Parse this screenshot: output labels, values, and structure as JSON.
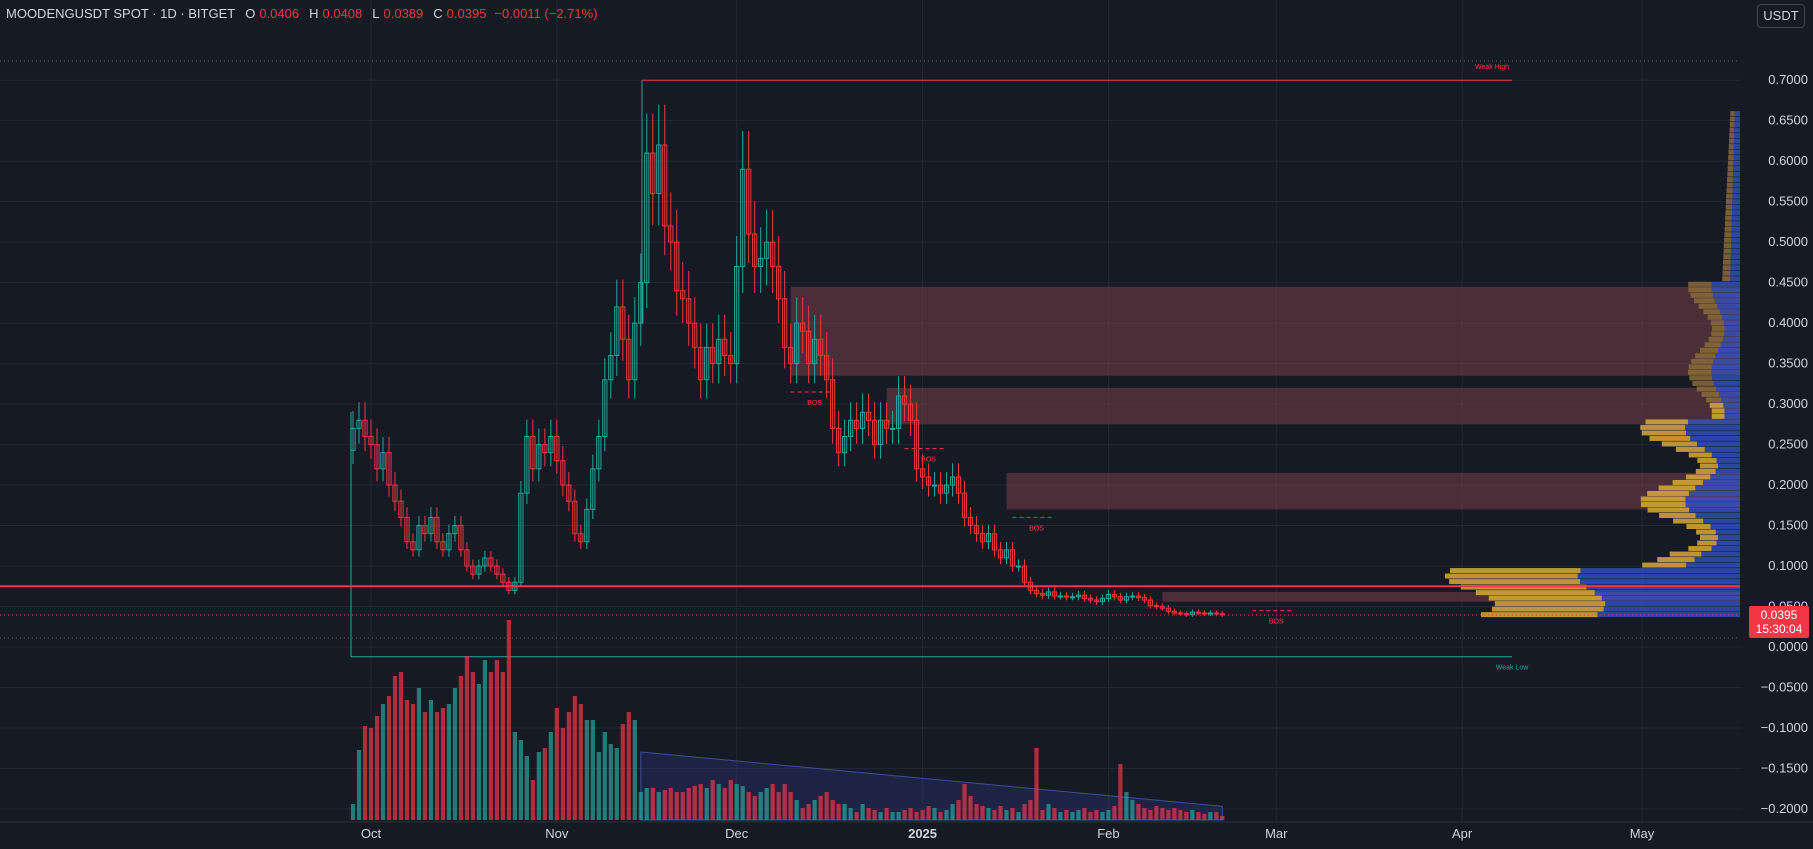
{
  "header": {
    "symbol": "MOODENGUSDT SPOT · 1D · BITGET",
    "open_label": "O",
    "open": "0.0406",
    "high_label": "H",
    "high": "0.0408",
    "low_label": "L",
    "low": "0.0389",
    "close_label": "C",
    "close": "0.0395",
    "change": "−0.0011 (−2.71%)"
  },
  "currency_button": "USDT",
  "last_price": {
    "value": "0.0395",
    "countdown": "15:30:04"
  },
  "colors": {
    "up": "#26a69a",
    "down": "#f23645",
    "bg": "#161a25",
    "grid": "#232733",
    "zone": "#7a3f48",
    "vp_yellow": "#d9a93a",
    "vp_blue": "#3355c8",
    "horizontal_line": "#f23645"
  },
  "annotations": {
    "weak_high": "Weak High",
    "weak_low": "Weak Low",
    "bos": "BOS"
  },
  "chart_data": {
    "type": "candlestick",
    "title": "",
    "x_axis_labels": [
      {
        "label": "Oct",
        "date": "2024-10-01"
      },
      {
        "label": "Nov",
        "date": "2024-11-01"
      },
      {
        "label": "Dec",
        "date": "2024-12-01"
      },
      {
        "label": "2025",
        "date": "2025-01-01",
        "bold": true
      },
      {
        "label": "Feb",
        "date": "2025-02-01"
      },
      {
        "label": "Mar",
        "date": "2025-03-01"
      },
      {
        "label": "Apr",
        "date": "2025-04-01"
      },
      {
        "label": "May",
        "date": "2025-05-01"
      }
    ],
    "y_axis_labels": [
      "0.7000",
      "0.6500",
      "0.6000",
      "0.5500",
      "0.5000",
      "0.4500",
      "0.4000",
      "0.3500",
      "0.3000",
      "0.2500",
      "0.2000",
      "0.1500",
      "0.1000",
      "0.0500",
      "0.0000",
      "−0.0500",
      "−0.1000",
      "−0.1500",
      "−0.2000"
    ],
    "ylim": [
      -0.205,
      0.72
    ],
    "start_date": "2024-09-28",
    "closes": [
      0.27,
      0.28,
      0.26,
      0.25,
      0.22,
      0.24,
      0.2,
      0.18,
      0.16,
      0.13,
      0.12,
      0.15,
      0.14,
      0.16,
      0.13,
      0.12,
      0.14,
      0.15,
      0.12,
      0.1,
      0.09,
      0.1,
      0.11,
      0.1,
      0.09,
      0.08,
      0.07,
      0.08,
      0.19,
      0.26,
      0.22,
      0.25,
      0.24,
      0.26,
      0.23,
      0.2,
      0.18,
      0.14,
      0.13,
      0.17,
      0.22,
      0.26,
      0.33,
      0.36,
      0.42,
      0.38,
      0.33,
      0.4,
      0.45,
      0.61,
      0.56,
      0.62,
      0.52,
      0.5,
      0.44,
      0.43,
      0.4,
      0.37,
      0.33,
      0.37,
      0.35,
      0.38,
      0.36,
      0.35,
      0.47,
      0.59,
      0.51,
      0.47,
      0.48,
      0.5,
      0.47,
      0.43,
      0.37,
      0.35,
      0.4,
      0.39,
      0.35,
      0.38,
      0.36,
      0.33,
      0.27,
      0.24,
      0.26,
      0.28,
      0.27,
      0.29,
      0.28,
      0.25,
      0.28,
      0.27,
      0.27,
      0.31,
      0.3,
      0.28,
      0.22,
      0.21,
      0.2,
      0.2,
      0.19,
      0.2,
      0.21,
      0.19,
      0.16,
      0.15,
      0.14,
      0.13,
      0.14,
      0.12,
      0.11,
      0.12,
      0.1,
      0.1,
      0.08,
      0.07,
      0.066,
      0.064,
      0.068,
      0.063,
      0.063,
      0.062,
      0.062,
      0.064,
      0.06,
      0.058,
      0.056,
      0.06,
      0.065,
      0.062,
      0.058,
      0.062,
      0.063,
      0.061,
      0.058,
      0.051,
      0.05,
      0.048,
      0.044,
      0.042,
      0.041,
      0.04,
      0.043,
      0.042,
      0.041,
      0.042,
      0.041,
      0.04
    ],
    "volume": [
      0.08,
      0.35,
      0.47,
      0.46,
      0.52,
      0.58,
      0.62,
      0.72,
      0.74,
      0.6,
      0.58,
      0.66,
      0.54,
      0.6,
      0.54,
      0.56,
      0.58,
      0.66,
      0.72,
      0.82,
      0.74,
      0.68,
      0.8,
      0.74,
      0.8,
      0.74,
      1.0,
      0.44,
      0.4,
      0.32,
      0.2,
      0.34,
      0.36,
      0.44,
      0.56,
      0.46,
      0.54,
      0.62,
      0.58,
      0.5,
      0.5,
      0.34,
      0.44,
      0.38,
      0.36,
      0.48,
      0.54,
      0.5,
      0.14,
      0.16,
      0.16,
      0.14,
      0.15,
      0.16,
      0.14,
      0.14,
      0.16,
      0.17,
      0.18,
      0.16,
      0.2,
      0.18,
      0.16,
      0.2,
      0.18,
      0.17,
      0.14,
      0.12,
      0.14,
      0.16,
      0.18,
      0.14,
      0.18,
      0.14,
      0.1,
      0.06,
      0.08,
      0.1,
      0.12,
      0.14,
      0.1,
      0.08,
      0.08,
      0.06,
      0.04,
      0.08,
      0.06,
      0.05,
      0.04,
      0.06,
      0.04,
      0.04,
      0.05,
      0.06,
      0.04,
      0.05,
      0.07,
      0.06,
      0.04,
      0.05,
      0.08,
      0.1,
      0.18,
      0.12,
      0.08,
      0.07,
      0.06,
      0.05,
      0.07,
      0.05,
      0.06,
      0.04,
      0.08,
      0.1,
      0.36,
      0.05,
      0.08,
      0.06,
      0.04,
      0.05,
      0.04,
      0.05,
      0.06,
      0.04,
      0.05,
      0.04,
      0.05,
      0.07,
      0.28,
      0.14,
      0.1,
      0.08,
      0.06,
      0.05,
      0.07,
      0.06,
      0.05,
      0.06,
      0.05,
      0.04,
      0.05,
      0.04,
      0.03,
      0.04,
      0.04,
      0.02
    ],
    "zones": [
      {
        "from_date": "2024-12-10",
        "price_low": 0.335,
        "price_high": 0.445
      },
      {
        "from_date": "2024-12-26",
        "price_low": 0.275,
        "price_high": 0.32
      },
      {
        "from_date": "2025-01-15",
        "price_low": 0.17,
        "price_high": 0.215
      },
      {
        "from_date": "2025-02-10",
        "price_low": 0.056,
        "price_high": 0.068
      }
    ],
    "horizontal_line_price": 0.075,
    "weak_high_price": 0.7,
    "weak_low_price": -0.012,
    "bos_markers": [
      {
        "date": "2024-12-12",
        "price": 0.315
      },
      {
        "date": "2024-12-31",
        "price": 0.245
      },
      {
        "date": "2025-01-18",
        "price": 0.16
      },
      {
        "date": "2025-02-27",
        "price": 0.045
      }
    ]
  }
}
